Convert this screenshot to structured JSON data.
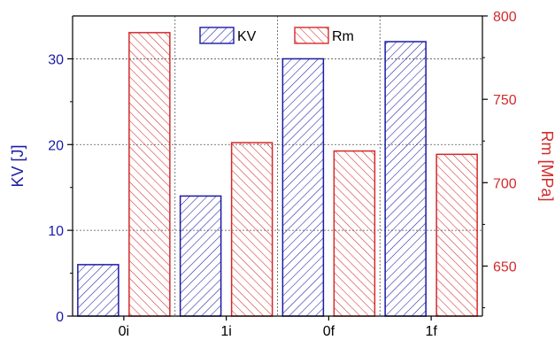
{
  "chart_data": {
    "type": "bar",
    "categories": [
      "0i",
      "1i",
      "0f",
      "1f"
    ],
    "series": [
      {
        "name": "KV",
        "axis": "left",
        "color": "#1a1aa6",
        "values": [
          6,
          14,
          30,
          32
        ]
      },
      {
        "name": "Rm",
        "axis": "right",
        "color": "#d42a2a",
        "values": [
          790,
          724,
          719,
          717
        ]
      }
    ],
    "left_axis": {
      "label": "KV [J]",
      "range": [
        0,
        35
      ],
      "ticks": [
        0,
        10,
        20,
        30
      ],
      "color": "#1a1aa6"
    },
    "right_axis": {
      "label": "Rm [MPa]",
      "range": [
        620,
        800
      ],
      "ticks": [
        650,
        700,
        750,
        800
      ],
      "color": "#d42a2a"
    },
    "grid": true,
    "grid_style": "dotted",
    "legend": "top-center",
    "fill": "diagonal-hatch"
  }
}
